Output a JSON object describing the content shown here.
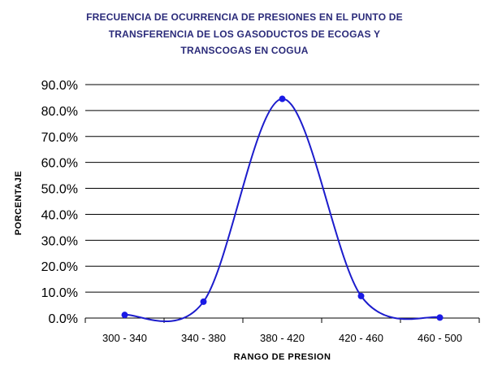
{
  "chart_data": {
    "type": "line",
    "title_lines": [
      "FRECUENCIA DE OCURRENCIA DE PRESIONES EN EL PUNTO DE",
      "TRANSFERENCIA DE LOS GASODUCTOS DE ECOGAS Y",
      "TRANSCOGAS EN COGUA"
    ],
    "xlabel": "RANGO DE PRESION",
    "ylabel": "PORCENTAJE",
    "categories": [
      "300 - 340",
      "340 - 380",
      "380 - 420",
      "420 - 460",
      "460 - 500"
    ],
    "series": [
      {
        "values": [
          1.2,
          6.3,
          84.5,
          8.5,
          0.2
        ]
      }
    ],
    "ylim": [
      0,
      90
    ],
    "y_ticks": [
      0,
      10,
      20,
      30,
      40,
      50,
      60,
      70,
      80,
      90
    ],
    "y_tick_labels": [
      "0.0%",
      "10.0%",
      "20.0%",
      "30.0%",
      "40.0%",
      "50.0%",
      "60.0%",
      "70.0%",
      "80.0%",
      "90.0%"
    ],
    "smoothed": true,
    "grid": "horizontal",
    "legend": "none",
    "colors": {
      "series": "#1c1ccc",
      "marker": "#1a1ae6",
      "title": "#2b2b7a",
      "grid": "#000000"
    }
  }
}
